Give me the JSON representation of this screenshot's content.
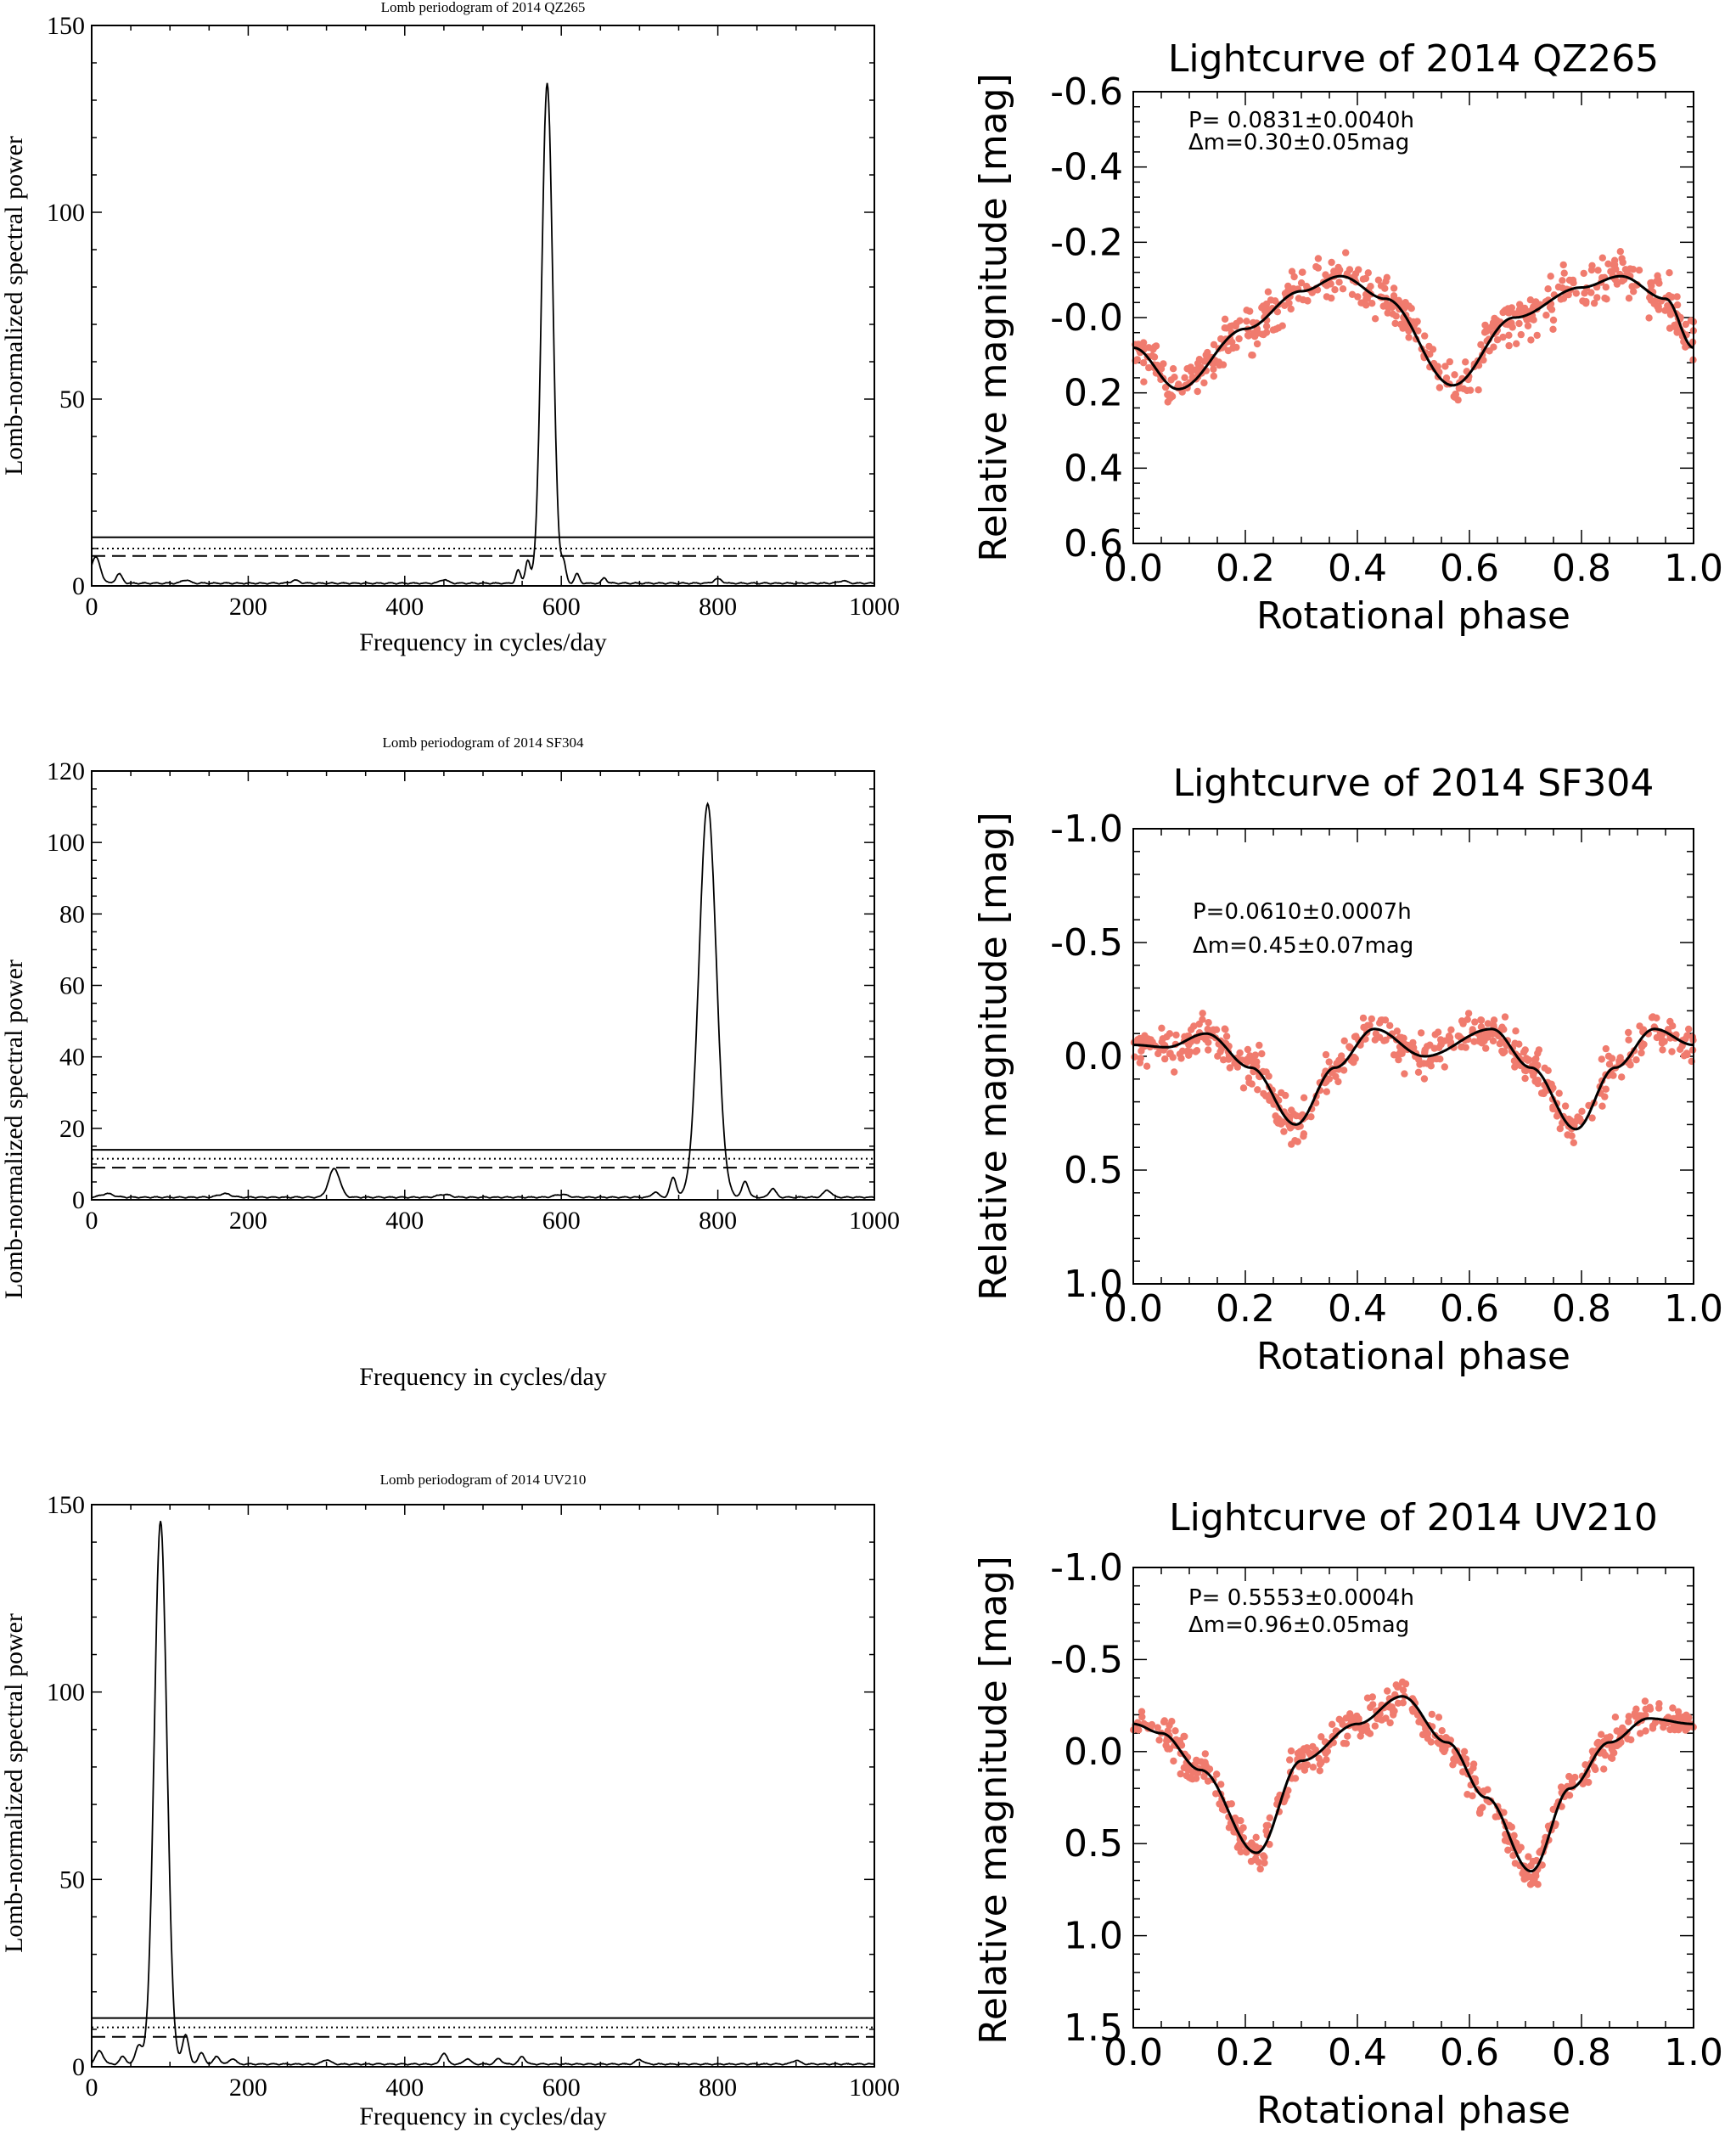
{
  "chart_data": [
    {
      "type": "line",
      "title": "Lomb periodogram of 2014 QZ265",
      "xlabel": "Frequency in cycles/day",
      "ylabel": "Lomb-normalized spectral power",
      "xlim": [
        0,
        1000
      ],
      "ylim": [
        0,
        150
      ],
      "xticks": [
        0,
        200,
        400,
        600,
        800,
        1000
      ],
      "yticks": [
        0,
        50,
        100,
        150
      ],
      "thresholds": {
        "solid": 13,
        "dotted": 10,
        "dashed": 8
      },
      "peaks": [
        {
          "x": 582,
          "y": 134,
          "width": 7
        },
        {
          "x": 5,
          "y": 7,
          "width": 6
        },
        {
          "x": 35,
          "y": 2.5,
          "width": 4
        },
        {
          "x": 545,
          "y": 3.5,
          "width": 3
        },
        {
          "x": 557,
          "y": 6,
          "width": 3
        },
        {
          "x": 603,
          "y": 5,
          "width": 3
        },
        {
          "x": 620,
          "y": 2.5,
          "width": 3
        },
        {
          "x": 655,
          "y": 1.5,
          "width": 3
        },
        {
          "x": 120,
          "y": 0.9,
          "width": 5
        },
        {
          "x": 260,
          "y": 0.8,
          "width": 5
        },
        {
          "x": 450,
          "y": 1,
          "width": 5
        },
        {
          "x": 800,
          "y": 1.2,
          "width": 5
        },
        {
          "x": 960,
          "y": 0.7,
          "width": 5
        }
      ]
    },
    {
      "type": "scatter",
      "title": "Lightcurve of 2014 QZ265",
      "xlabel": "Rotational phase",
      "ylabel": "Relative magnitude [mag]",
      "xlim": [
        0,
        1
      ],
      "ylim": [
        0.6,
        -0.6
      ],
      "xticks": [
        "0.0",
        "0.2",
        "0.4",
        "0.6",
        "0.8",
        "1.0"
      ],
      "yticks": [
        "-0.6",
        "-0.4",
        "-0.2",
        "-0.0",
        "0.2",
        "0.4",
        "0.6"
      ],
      "period_label": "P= 0.0831±0.0040h",
      "amplitude_label": "Δm=0.30±0.05mag",
      "fit": {
        "x": [
          0,
          0.08,
          0.2,
          0.3,
          0.37,
          0.45,
          0.57,
          0.68,
          0.8,
          0.87,
          0.95,
          1.0
        ],
        "y": [
          0.08,
          0.19,
          0.03,
          -0.07,
          -0.11,
          -0.05,
          0.18,
          0.0,
          -0.08,
          -0.11,
          -0.05,
          0.08
        ]
      },
      "scatter": 0.06,
      "point_color": "#f07b6e"
    },
    {
      "type": "line",
      "title": "Lomb periodogram of 2014 SF304",
      "xlabel": "Frequency in cycles/day",
      "ylabel": "Lomb-normalized spectral power",
      "xlim": [
        0,
        1000
      ],
      "ylim": [
        0,
        120
      ],
      "xticks": [
        0,
        200,
        400,
        600,
        800,
        1000
      ],
      "yticks": [
        0,
        20,
        40,
        60,
        80,
        100,
        120
      ],
      "thresholds": {
        "solid": 14,
        "dotted": 11.5,
        "dashed": 9
      },
      "peaks": [
        {
          "x": 787,
          "y": 110,
          "width": 11
        },
        {
          "x": 310,
          "y": 8,
          "width": 7
        },
        {
          "x": 743,
          "y": 5.5,
          "width": 4
        },
        {
          "x": 835,
          "y": 4.5,
          "width": 4
        },
        {
          "x": 870,
          "y": 2.5,
          "width": 4
        },
        {
          "x": 940,
          "y": 2,
          "width": 5
        },
        {
          "x": 720,
          "y": 1.5,
          "width": 4
        },
        {
          "x": 20,
          "y": 1,
          "width": 8
        },
        {
          "x": 170,
          "y": 1,
          "width": 8
        },
        {
          "x": 450,
          "y": 0.8,
          "width": 8
        },
        {
          "x": 600,
          "y": 0.8,
          "width": 8
        }
      ]
    },
    {
      "type": "scatter",
      "title": "Lightcurve of 2014 SF304",
      "xlabel": "Rotational phase",
      "ylabel": "Relative magnitude [mag]",
      "xlim": [
        0,
        1
      ],
      "ylim": [
        1.0,
        -1.0
      ],
      "xticks": [
        "0.0",
        "0.2",
        "0.4",
        "0.6",
        "0.8",
        "1.0"
      ],
      "yticks": [
        "-1.0",
        "-0.5",
        "0.0",
        "0.5",
        "1.0"
      ],
      "period_label": "P=0.0610±0.0007h",
      "amplitude_label": "Δm=0.45±0.07mag",
      "fit": {
        "x": [
          0,
          0.06,
          0.13,
          0.21,
          0.29,
          0.36,
          0.43,
          0.52,
          0.64,
          0.71,
          0.79,
          0.86,
          0.93,
          1.0
        ],
        "y": [
          -0.05,
          -0.04,
          -0.1,
          0.05,
          0.3,
          0.05,
          -0.12,
          0.0,
          -0.12,
          0.05,
          0.32,
          0.05,
          -0.12,
          -0.05
        ]
      },
      "scatter": 0.09,
      "point_color": "#f07b6e"
    },
    {
      "type": "line",
      "title": "Lomb periodogram of 2014 UV210",
      "xlabel": "Frequency in cycles/day",
      "ylabel": "Lomb-normalized spectral power",
      "xlim": [
        0,
        1000
      ],
      "ylim": [
        0,
        150
      ],
      "xticks": [
        0,
        200,
        400,
        600,
        800,
        1000
      ],
      "yticks": [
        0,
        50,
        100,
        150
      ],
      "thresholds": {
        "solid": 13,
        "dotted": 10.5,
        "dashed": 8
      },
      "peaks": [
        {
          "x": 88,
          "y": 145,
          "width": 8
        },
        {
          "x": 10,
          "y": 3.5,
          "width": 5
        },
        {
          "x": 40,
          "y": 2,
          "width": 4
        },
        {
          "x": 60,
          "y": 5,
          "width": 4
        },
        {
          "x": 120,
          "y": 8,
          "width": 4
        },
        {
          "x": 140,
          "y": 3,
          "width": 4
        },
        {
          "x": 160,
          "y": 2,
          "width": 4
        },
        {
          "x": 180,
          "y": 1.5,
          "width": 4
        },
        {
          "x": 450,
          "y": 3,
          "width": 4
        },
        {
          "x": 480,
          "y": 1.5,
          "width": 4
        },
        {
          "x": 520,
          "y": 1.5,
          "width": 4
        },
        {
          "x": 550,
          "y": 2,
          "width": 4
        },
        {
          "x": 300,
          "y": 1.2,
          "width": 5
        },
        {
          "x": 700,
          "y": 1.2,
          "width": 5
        },
        {
          "x": 900,
          "y": 1,
          "width": 5
        }
      ]
    },
    {
      "type": "scatter",
      "title": "Lightcurve of 2014 UV210",
      "xlabel": "Rotational phase",
      "ylabel": "Relative magnitude [mag]",
      "xlim": [
        0,
        1
      ],
      "ylim": [
        1.5,
        -1.0
      ],
      "xticks": [
        "0.0",
        "0.2",
        "0.4",
        "0.6",
        "0.8",
        "1.0"
      ],
      "yticks": [
        "-1.0",
        "-0.5",
        "0.0",
        "0.5",
        "1.0",
        "1.5"
      ],
      "period_label": "P= 0.5553±0.0004h",
      "amplitude_label": "Δm=0.96±0.05mag",
      "fit": {
        "x": [
          0,
          0.05,
          0.12,
          0.22,
          0.3,
          0.4,
          0.48,
          0.56,
          0.63,
          0.71,
          0.78,
          0.85,
          0.92,
          1.0
        ],
        "y": [
          -0.15,
          -0.1,
          0.1,
          0.55,
          0.05,
          -0.15,
          -0.3,
          -0.05,
          0.25,
          0.65,
          0.2,
          -0.05,
          -0.18,
          -0.15
        ]
      },
      "scatter": 0.1,
      "point_color": "#f07b6e"
    }
  ]
}
